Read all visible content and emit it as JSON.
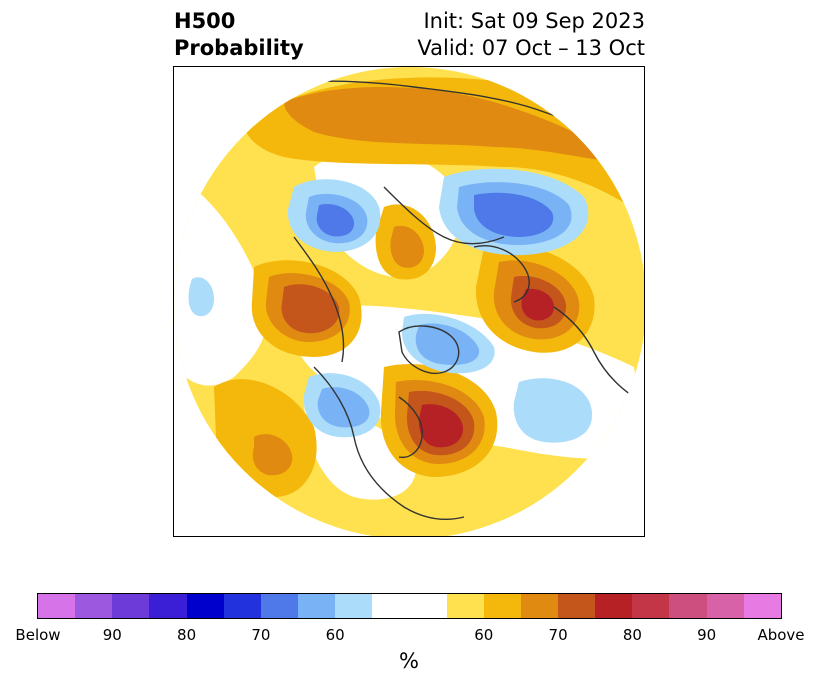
{
  "header": {
    "title_line1": "H500",
    "title_line2": "Probability",
    "init_text": "Init: Sat 09 Sep 2023",
    "valid_text": "Valid: 07 Oct – 13 Oct"
  },
  "colorbar": {
    "unit": "%",
    "colors": [
      "#d673e8",
      "#9d58e0",
      "#6c3bd8",
      "#3b1fd6",
      "#0000cc",
      "#2233dd",
      "#4f79e8",
      "#7ab3f5",
      "#abdcfa",
      "#ffffff",
      "#ffe14f",
      "#f3b80b",
      "#e08a12",
      "#c4561b",
      "#b52125",
      "#c23648",
      "#cc4f80",
      "#d862a8",
      "#e87ae3"
    ],
    "widths": [
      1,
      1,
      1,
      1,
      1,
      1,
      1,
      1,
      1,
      2,
      1,
      1,
      1,
      1,
      1,
      1,
      1,
      1,
      1
    ],
    "tick_labels": [
      "Below",
      "90",
      "80",
      "70",
      "60",
      "60",
      "70",
      "80",
      "90",
      "Above"
    ]
  },
  "map": {
    "colors": {
      "white": "#ffffff",
      "yellow": "#ffe14f",
      "gold": "#f3b80b",
      "orange": "#e08a12",
      "darkorange": "#c4561b",
      "red": "#b52125",
      "lightblue": "#abdcfa",
      "skyblue": "#7ab3f5",
      "blue": "#4f79e8",
      "coast": "#333333"
    }
  }
}
